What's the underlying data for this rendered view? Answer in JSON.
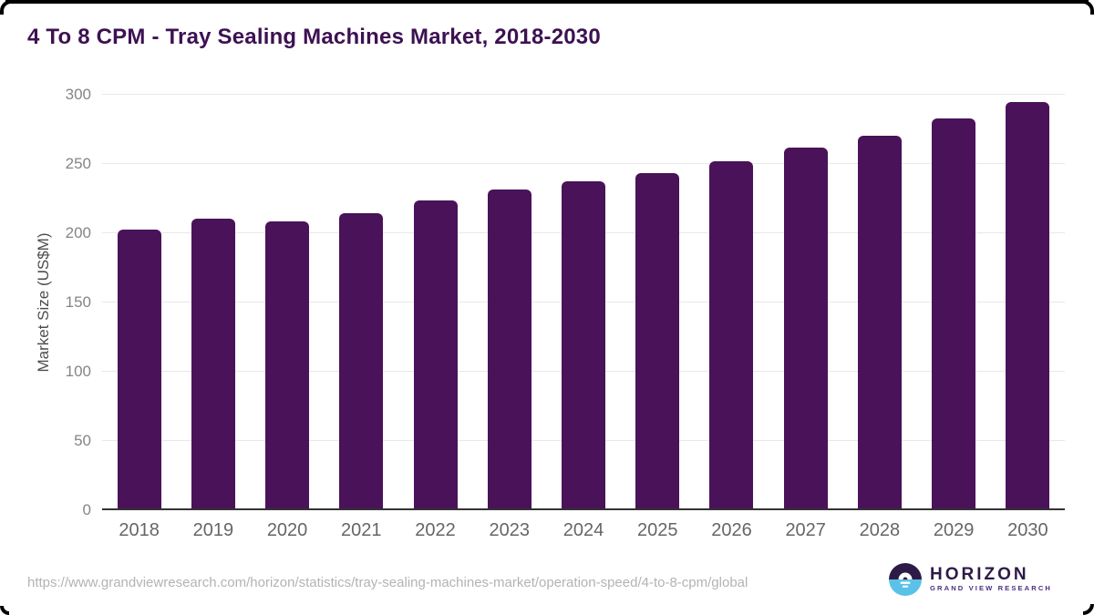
{
  "header": {
    "title": "4 To 8 CPM - Tray Sealing Machines Market, 2018-2030"
  },
  "chart_data": {
    "type": "bar",
    "title": "4 To 8 CPM - Tray Sealing Machines Market, 2018-2030",
    "categories": [
      "2018",
      "2019",
      "2020",
      "2021",
      "2022",
      "2023",
      "2024",
      "2025",
      "2026",
      "2027",
      "2028",
      "2029",
      "2030"
    ],
    "values": [
      202,
      210,
      208,
      214,
      223,
      231,
      237,
      243,
      251,
      261,
      270,
      282,
      294
    ],
    "xlabel": "",
    "ylabel": "Market Size (US$M)",
    "ylim": [
      0,
      300
    ],
    "yticks": [
      0,
      50,
      100,
      150,
      200,
      250,
      300
    ],
    "grid": true,
    "legend": "none",
    "bar_color": "#4a1259"
  },
  "footer": {
    "source_url": "https://www.grandviewresearch.com/horizon/statistics/tray-sealing-machines-market/operation-speed/4-to-8-cpm/global",
    "logo": {
      "title": "HORIZON",
      "subtitle": "GRAND VIEW RESEARCH"
    }
  },
  "colors": {
    "title_text": "#3d1152",
    "bar": "#4a1259",
    "gridline": "#e8e8e8",
    "axis_line": "#333333",
    "y_tick_label": "#858585",
    "x_tick_label": "#666666",
    "axis_title": "#4d4d4d",
    "url_text": "#b3b3b3",
    "logo_dark_purple": "#2e1a47",
    "logo_light_blue": "#5bc2e7",
    "frame": "#000000"
  }
}
